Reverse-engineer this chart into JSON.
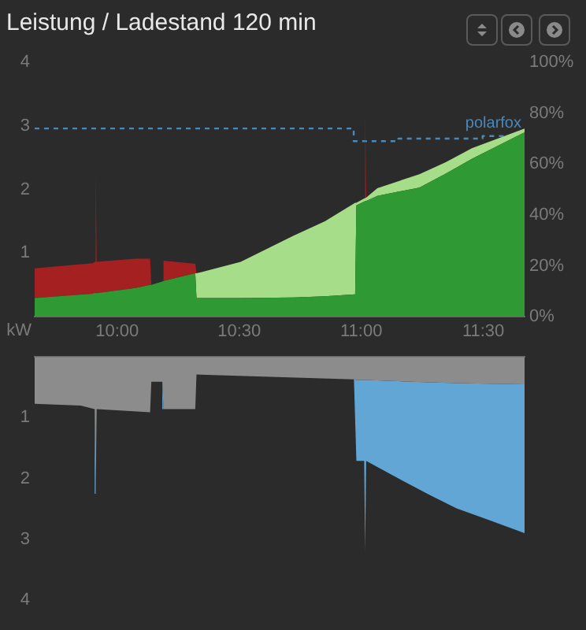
{
  "chart_data": [
    {
      "type": "area",
      "title": "Leistung / Ladestand 120 min",
      "ylabel": "kW",
      "stacked": true,
      "x": [
        9.662,
        9.9,
        9.908,
        9.912,
        9.916,
        10.075,
        10.135,
        10.14,
        10.185,
        10.19,
        10.32,
        10.325,
        10.506,
        10.721,
        10.851,
        10.975,
        10.98,
        11.012,
        11.016,
        11.02,
        11.066,
        11.238,
        11.346,
        11.453,
        11.669
      ],
      "series": [
        {
          "color": "#2f9a33",
          "values": [
            0.29,
            0.36,
            0.37,
            0.37,
            0.37,
            0.45,
            0.5,
            0.5,
            0.55,
            0.56,
            0.68,
            0.29,
            0.29,
            0.3,
            0.32,
            0.35,
            1.75,
            1.81,
            1.82,
            1.82,
            1.9,
            2.03,
            2.25,
            2.48,
            2.9
          ]
        },
        {
          "color": "#a6dd88",
          "values": [
            0,
            0,
            0,
            0,
            0,
            0,
            0,
            0,
            0,
            0,
            0,
            0.39,
            0.57,
            0.97,
            1.18,
            1.44,
            0.04,
            0.05,
            0.05,
            0.05,
            0.12,
            0.21,
            0.18,
            0.17,
            0.06
          ]
        },
        {
          "color": "#a52121",
          "values": [
            0.47,
            0.48,
            0.49,
            1.91,
            0.49,
            0.46,
            0.41,
            0,
            0,
            0.32,
            0.15,
            0,
            0,
            0,
            0,
            0,
            0,
            0,
            1.33,
            0,
            0,
            0,
            0,
            0,
            0
          ]
        },
        {
          "type": "step",
          "name": "polarfox",
          "color": "#4a88b8",
          "axis": "y2",
          "line_style": "dashed",
          "x": [
            9.662,
            10.969,
            11.152,
            11.497,
            11.669
          ],
          "values": [
            74,
            69,
            70,
            71,
            71
          ]
        }
      ],
      "xlim": [
        9.662,
        11.669
      ],
      "xticks": [
        {
          "value": 10,
          "label": "10:00"
        },
        {
          "value": 10.5,
          "label": "10:30"
        },
        {
          "value": 11,
          "label": "11:00"
        },
        {
          "value": 11.5,
          "label": "11:30"
        }
      ],
      "ylim": [
        0,
        4
      ],
      "yticks": [
        1,
        2,
        3,
        4
      ],
      "y2lim": [
        0,
        100
      ],
      "y2ticks": [
        {
          "value": 0,
          "label": "0%"
        },
        {
          "value": 20,
          "label": "20%"
        },
        {
          "value": 40,
          "label": "40%"
        },
        {
          "value": 60,
          "label": "60%"
        },
        {
          "value": 80,
          "label": "80%"
        },
        {
          "value": 100,
          "label": "100%"
        }
      ]
    },
    {
      "type": "area",
      "stacked": true,
      "tick_labels": "y",
      "x": [
        9.662,
        9.85,
        9.908,
        9.912,
        9.916,
        10.135,
        10.14,
        10.185,
        10.19,
        10.32,
        10.325,
        10.97,
        10.98,
        11.012,
        11.016,
        11.02,
        11.152,
        11.28,
        11.39,
        11.52,
        11.669
      ],
      "series": [
        {
          "color": "#8c8c8c",
          "values": [
            0.77,
            0.8,
            0.86,
            2.25,
            0.86,
            0.91,
            0.41,
            0.41,
            0.86,
            0.86,
            0.29,
            0.37,
            0.38,
            0.38,
            0.38,
            0.38,
            0.4,
            0.42,
            0.43,
            0.44,
            0.45
          ]
        },
        {
          "color": "#62a6d6",
          "values": [
            0,
            0,
            0,
            0,
            0,
            0,
            0,
            0,
            0,
            0,
            0,
            0,
            1.33,
            1.33,
            2.82,
            1.33,
            1.6,
            1.85,
            2.06,
            2.24,
            2.45
          ]
        }
      ],
      "xlim": [
        9.662,
        11.669
      ],
      "ylim": [
        4,
        0
      ],
      "yticks": [
        1,
        2,
        3,
        4
      ]
    }
  ]
}
